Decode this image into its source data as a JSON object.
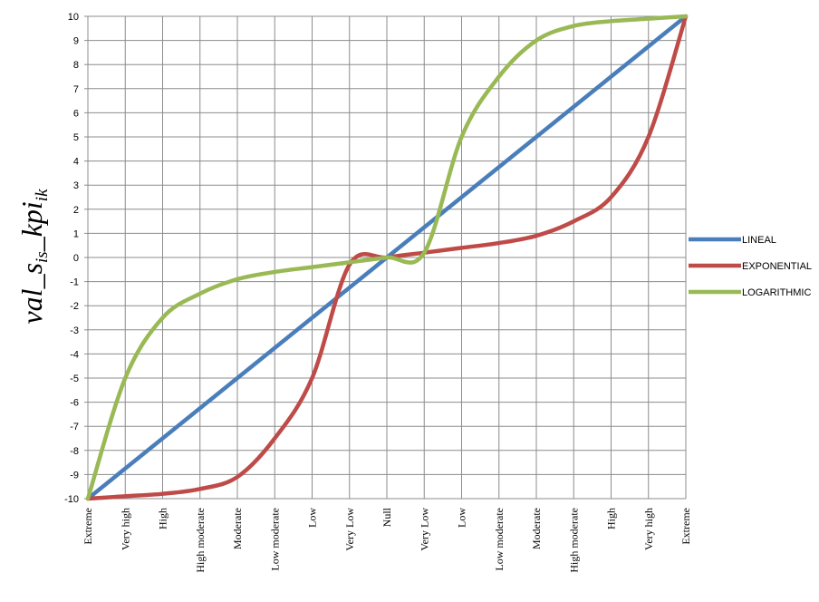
{
  "chart_data": {
    "type": "line",
    "title": "",
    "xlabel": "",
    "ylabel": {
      "parts": [
        {
          "text": "val_s",
          "role": "base"
        },
        {
          "text": "is",
          "role": "sub"
        },
        {
          "text": "_kpi",
          "role": "base"
        },
        {
          "text": "ik",
          "role": "sub"
        }
      ]
    },
    "categories": [
      "Extreme",
      "Very high",
      "High",
      "High moderate",
      "Moderate",
      "Low moderate",
      "Low",
      "Very Low",
      "Null",
      "Very Low",
      "Low",
      "Low moderate",
      "Moderate",
      "High moderate",
      "High",
      "Very high",
      "Extreme"
    ],
    "ylim": [
      -10,
      10
    ],
    "yticks": [
      -10,
      -9,
      -8,
      -7,
      -6,
      -5,
      -4,
      -3,
      -2,
      -1,
      0,
      1,
      2,
      3,
      4,
      5,
      6,
      7,
      8,
      9,
      10
    ],
    "grid": true,
    "legend_position": "right",
    "series": [
      {
        "name": "LINEAL",
        "color": "#4a7ebb",
        "values": [
          -10,
          -8.75,
          -7.5,
          -6.25,
          -5,
          -3.75,
          -2.5,
          -1.25,
          0,
          1.25,
          2.5,
          3.75,
          5,
          6.25,
          7.5,
          8.75,
          10
        ]
      },
      {
        "name": "EXPONENTIAL",
        "color": "#be4b48",
        "values": [
          -10,
          -9.9,
          -9.8,
          -9.6,
          -9.1,
          -7.5,
          -5,
          -0.3,
          0,
          0.2,
          0.4,
          0.6,
          0.9,
          1.5,
          2.5,
          5,
          10
        ]
      },
      {
        "name": "LOGARITHMIC",
        "color": "#98b954",
        "values": [
          -10,
          -5,
          -2.5,
          -1.5,
          -0.9,
          -0.6,
          -0.4,
          -0.2,
          0,
          0.2,
          5,
          7.5,
          9,
          9.6,
          9.8,
          9.9,
          10
        ]
      }
    ]
  }
}
